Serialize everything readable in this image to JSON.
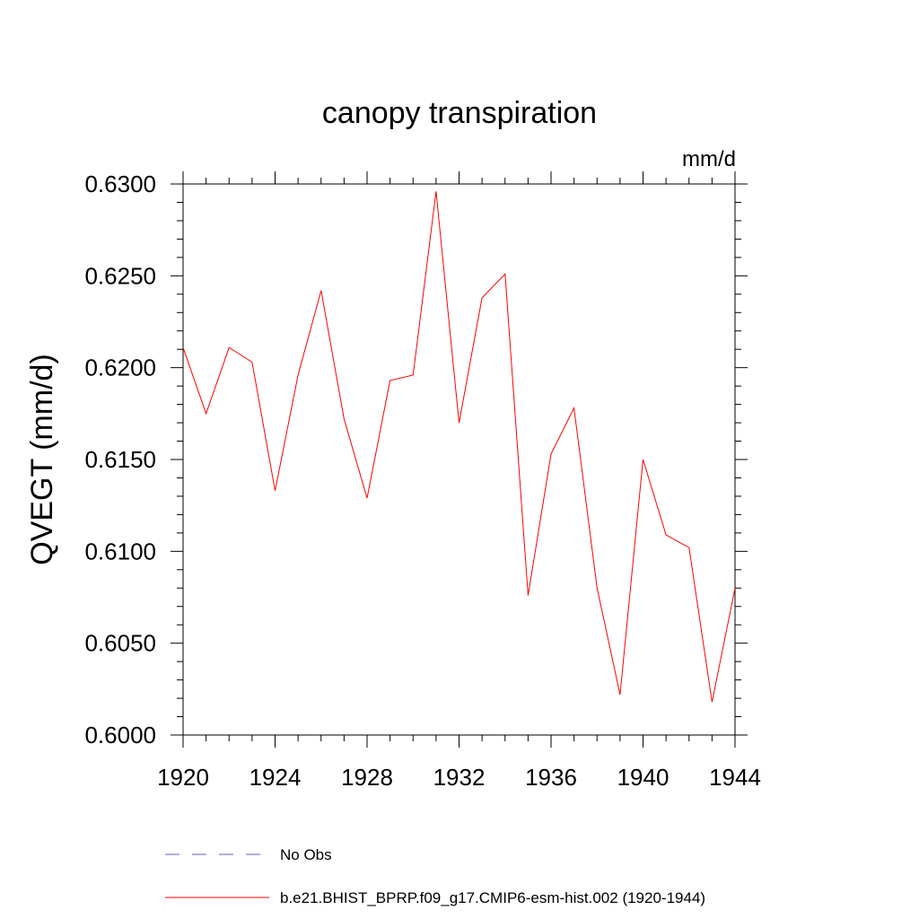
{
  "chart_data": {
    "type": "line",
    "title": "canopy transpiration",
    "units_label": "mm/d",
    "ylabel": "QVEGT  (mm/d)",
    "xlabel": "",
    "xlim": [
      1920,
      1944
    ],
    "ylim": [
      0.6,
      0.63
    ],
    "x_ticks": [
      "1920",
      "1924",
      "1928",
      "1932",
      "1936",
      "1940",
      "1944"
    ],
    "y_ticks": [
      "0.6000",
      "0.6050",
      "0.6100",
      "0.6150",
      "0.6200",
      "0.6250",
      "0.6300"
    ],
    "x": [
      1920,
      1921,
      1922,
      1923,
      1924,
      1925,
      1926,
      1927,
      1928,
      1929,
      1930,
      1931,
      1932,
      1933,
      1934,
      1935,
      1936,
      1937,
      1938,
      1939,
      1940,
      1941,
      1942,
      1943,
      1944
    ],
    "series": [
      {
        "name": "b.e21.BHIST_BPRP.f09_g17.CMIP6-esm-hist.002 (1920-1944)",
        "color": "#ff0000",
        "style": "solid",
        "values": [
          0.6211,
          0.6175,
          0.6211,
          0.6203,
          0.6133,
          0.6196,
          0.6242,
          0.6172,
          0.6129,
          0.6193,
          0.6196,
          0.6296,
          0.617,
          0.6238,
          0.6251,
          0.6076,
          0.6153,
          0.6178,
          0.608,
          0.6022,
          0.615,
          0.6109,
          0.6102,
          0.6018,
          0.608
        ]
      }
    ],
    "legend": [
      {
        "label": "No Obs",
        "color": "#6a5acd",
        "style": "dashed"
      },
      {
        "label": "b.e21.BHIST_BPRP.f09_g17.CMIP6-esm-hist.002 (1920-1944)",
        "color": "#ff0000",
        "style": "solid"
      }
    ],
    "legend_placement": "bottom",
    "grid": false
  }
}
